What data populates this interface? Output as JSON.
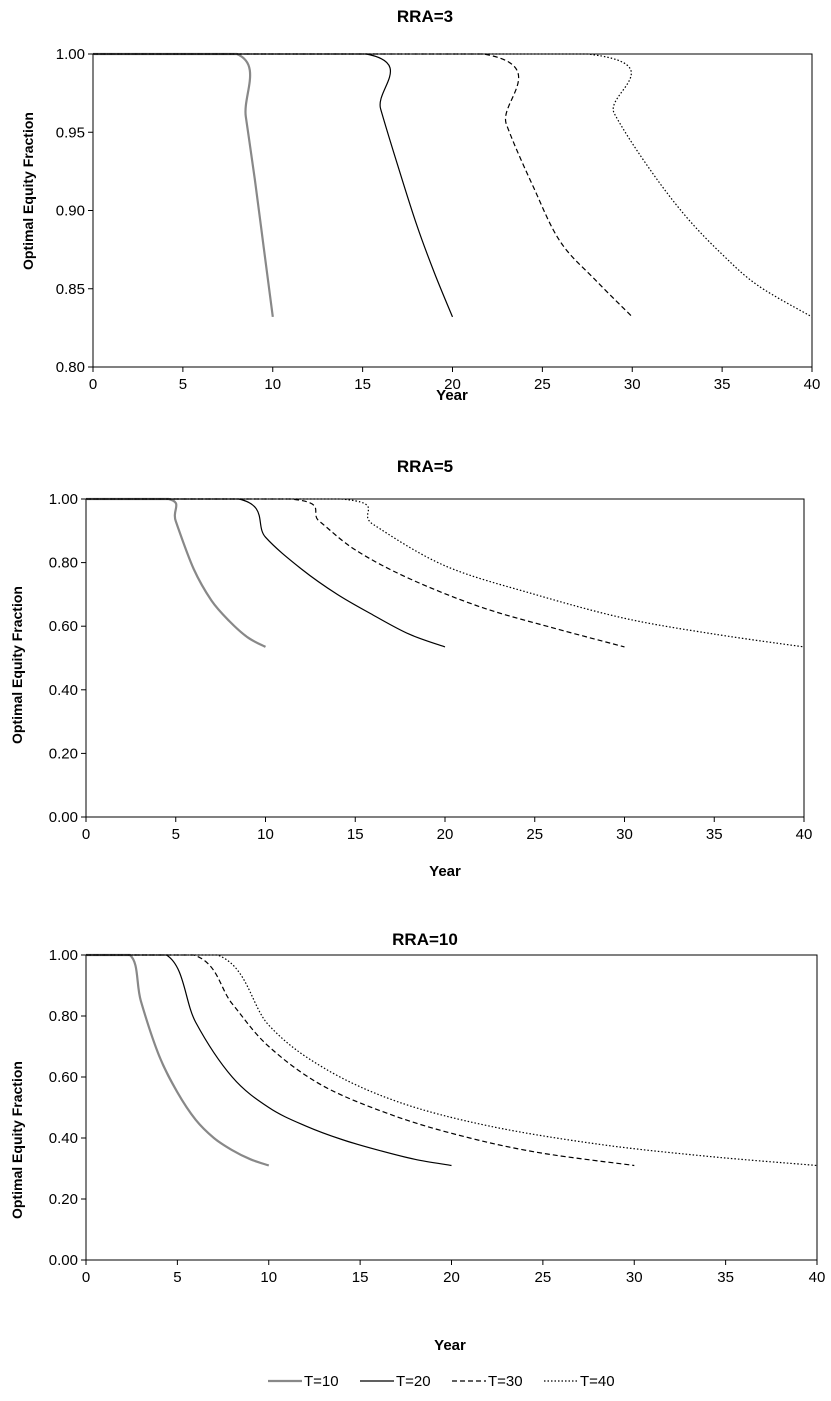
{
  "chart_data": [
    {
      "type": "line",
      "title": "RRA=3",
      "xlabel": "Year",
      "ylabel": "Optimal Equity Fraction",
      "xlim": [
        0,
        40
      ],
      "ylim": [
        0.8,
        1.0
      ],
      "x_ticks": [
        "0",
        "5",
        "10",
        "15",
        "20",
        "25",
        "30",
        "35",
        "40"
      ],
      "y_ticks": [
        "0.80",
        "0.85",
        "0.90",
        "0.95",
        "1.00"
      ],
      "grid": false,
      "series": [
        {
          "name": "T=10",
          "style": "gray-solid",
          "points": [
            [
              0,
              1.0
            ],
            [
              8.0,
              1.0
            ],
            [
              8.5,
              0.96
            ],
            [
              9.0,
              0.92
            ],
            [
              9.5,
              0.876
            ],
            [
              10,
              0.832
            ]
          ]
        },
        {
          "name": "T=20",
          "style": "solid",
          "points": [
            [
              0,
              1.0
            ],
            [
              15.2,
              1.0
            ],
            [
              16,
              0.965
            ],
            [
              17,
              0.927
            ],
            [
              18,
              0.891
            ],
            [
              19,
              0.86
            ],
            [
              20,
              0.832
            ]
          ]
        },
        {
          "name": "T=30",
          "style": "dashed",
          "points": [
            [
              0,
              1.0
            ],
            [
              21.7,
              1.0
            ],
            [
              23,
              0.955
            ],
            [
              24.5,
              0.915
            ],
            [
              26,
              0.88
            ],
            [
              28,
              0.855
            ],
            [
              30,
              0.832
            ]
          ]
        },
        {
          "name": "T=40",
          "style": "dotted",
          "points": [
            [
              0,
              1.0
            ],
            [
              27.5,
              1.0
            ],
            [
              29,
              0.962
            ],
            [
              31,
              0.926
            ],
            [
              33,
              0.896
            ],
            [
              35,
              0.872
            ],
            [
              37,
              0.852
            ],
            [
              40,
              0.832
            ]
          ]
        }
      ]
    },
    {
      "type": "line",
      "title": "RRA=5",
      "xlabel": "Year",
      "ylabel": "Optimal Equity Fraction",
      "xlim": [
        0,
        40
      ],
      "ylim": [
        0.0,
        1.0
      ],
      "x_ticks": [
        "0",
        "5",
        "10",
        "15",
        "20",
        "25",
        "30",
        "35",
        "40"
      ],
      "y_ticks": [
        "0.00",
        "0.20",
        "0.40",
        "0.60",
        "0.80",
        "1.00"
      ],
      "grid": false,
      "series": [
        {
          "name": "T=10",
          "style": "gray-solid",
          "points": [
            [
              0,
              1.0
            ],
            [
              4.6,
              1.0
            ],
            [
              5,
              0.93
            ],
            [
              6,
              0.78
            ],
            [
              7,
              0.68
            ],
            [
              8,
              0.615
            ],
            [
              9,
              0.565
            ],
            [
              10,
              0.535
            ]
          ]
        },
        {
          "name": "T=20",
          "style": "solid",
          "points": [
            [
              0,
              1.0
            ],
            [
              8.5,
              1.0
            ],
            [
              10,
              0.88
            ],
            [
              12,
              0.78
            ],
            [
              14,
              0.7
            ],
            [
              16,
              0.635
            ],
            [
              18,
              0.575
            ],
            [
              20,
              0.535
            ]
          ]
        },
        {
          "name": "T=30",
          "style": "dashed",
          "points": [
            [
              0,
              1.0
            ],
            [
              11.4,
              1.0
            ],
            [
              13,
              0.93
            ],
            [
              15,
              0.84
            ],
            [
              18,
              0.75
            ],
            [
              22,
              0.66
            ],
            [
              26,
              0.595
            ],
            [
              30,
              0.535
            ]
          ]
        },
        {
          "name": "T=40",
          "style": "dotted",
          "points": [
            [
              0,
              1.0
            ],
            [
              14.2,
              1.0
            ],
            [
              16,
              0.92
            ],
            [
              20,
              0.79
            ],
            [
              25,
              0.7
            ],
            [
              30,
              0.625
            ],
            [
              35,
              0.575
            ],
            [
              40,
              0.535
            ]
          ]
        }
      ]
    },
    {
      "type": "line",
      "title": "RRA=10",
      "xlabel": "Year",
      "ylabel": "Optimal Equity Fraction",
      "xlim": [
        0,
        40
      ],
      "ylim": [
        0.0,
        1.0
      ],
      "x_ticks": [
        "0",
        "5",
        "10",
        "15",
        "20",
        "25",
        "30",
        "35",
        "40"
      ],
      "y_ticks": [
        "0.00",
        "0.20",
        "0.40",
        "0.60",
        "0.80",
        "1.00"
      ],
      "grid": false,
      "series": [
        {
          "name": "T=10",
          "style": "gray-solid",
          "points": [
            [
              0,
              1.0
            ],
            [
              2.4,
              1.0
            ],
            [
              3,
              0.85
            ],
            [
              4,
              0.67
            ],
            [
              5,
              0.55
            ],
            [
              6,
              0.46
            ],
            [
              7,
              0.4
            ],
            [
              8,
              0.36
            ],
            [
              9,
              0.33
            ],
            [
              10,
              0.31
            ]
          ]
        },
        {
          "name": "T=20",
          "style": "solid",
          "points": [
            [
              0,
              1.0
            ],
            [
              4.4,
              1.0
            ],
            [
              6,
              0.78
            ],
            [
              8,
              0.6
            ],
            [
              10,
              0.5
            ],
            [
              12,
              0.44
            ],
            [
              14,
              0.395
            ],
            [
              16,
              0.36
            ],
            [
              18,
              0.33
            ],
            [
              20,
              0.31
            ]
          ]
        },
        {
          "name": "T=30",
          "style": "dashed",
          "points": [
            [
              0,
              1.0
            ],
            [
              5.9,
              1.0
            ],
            [
              8,
              0.84
            ],
            [
              10,
              0.7
            ],
            [
              13,
              0.57
            ],
            [
              17,
              0.47
            ],
            [
              21,
              0.4
            ],
            [
              25,
              0.35
            ],
            [
              30,
              0.31
            ]
          ]
        },
        {
          "name": "T=40",
          "style": "dotted",
          "points": [
            [
              0,
              1.0
            ],
            [
              7.2,
              1.0
            ],
            [
              10,
              0.77
            ],
            [
              13,
              0.63
            ],
            [
              17,
              0.52
            ],
            [
              22,
              0.44
            ],
            [
              28,
              0.38
            ],
            [
              34,
              0.34
            ],
            [
              40,
              0.31
            ]
          ]
        }
      ]
    }
  ],
  "legend": {
    "entries": [
      {
        "label": "T=10",
        "style": "gray-solid"
      },
      {
        "label": "T=20",
        "style": "solid"
      },
      {
        "label": "T=30",
        "style": "dashed"
      },
      {
        "label": "T=40",
        "style": "dotted"
      }
    ]
  },
  "colors": {
    "gray": "#888888",
    "black": "#000000"
  }
}
